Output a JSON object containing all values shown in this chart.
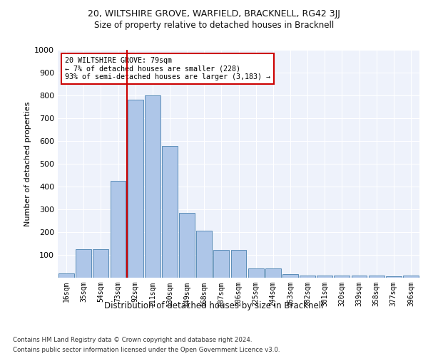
{
  "title_line1": "20, WILTSHIRE GROVE, WARFIELD, BRACKNELL, RG42 3JJ",
  "title_line2": "Size of property relative to detached houses in Bracknell",
  "xlabel": "Distribution of detached houses by size in Bracknell",
  "ylabel": "Number of detached properties",
  "categories": [
    "16sqm",
    "35sqm",
    "54sqm",
    "73sqm",
    "92sqm",
    "111sqm",
    "130sqm",
    "149sqm",
    "168sqm",
    "187sqm",
    "206sqm",
    "225sqm",
    "244sqm",
    "263sqm",
    "282sqm",
    "301sqm",
    "320sqm",
    "339sqm",
    "358sqm",
    "377sqm",
    "396sqm"
  ],
  "values": [
    20,
    125,
    125,
    425,
    780,
    800,
    578,
    285,
    207,
    122,
    122,
    40,
    40,
    15,
    10,
    10,
    8,
    8,
    8,
    5,
    10
  ],
  "bar_color": "#aec6e8",
  "bar_edge_color": "#5b8db8",
  "red_line_label": "20 WILTSHIRE GROVE: 79sqm",
  "annotation_line2": "← 7% of detached houses are smaller (228)",
  "annotation_line3": "93% of semi-detached houses are larger (3,183) →",
  "vline_color": "#cc0000",
  "annotation_box_color": "#cc0000",
  "ylim": [
    0,
    1000
  ],
  "yticks": [
    0,
    100,
    200,
    300,
    400,
    500,
    600,
    700,
    800,
    900,
    1000
  ],
  "footer_line1": "Contains HM Land Registry data © Crown copyright and database right 2024.",
  "footer_line2": "Contains public sector information licensed under the Open Government Licence v3.0.",
  "bg_color": "#eef2fb",
  "grid_color": "#ffffff"
}
